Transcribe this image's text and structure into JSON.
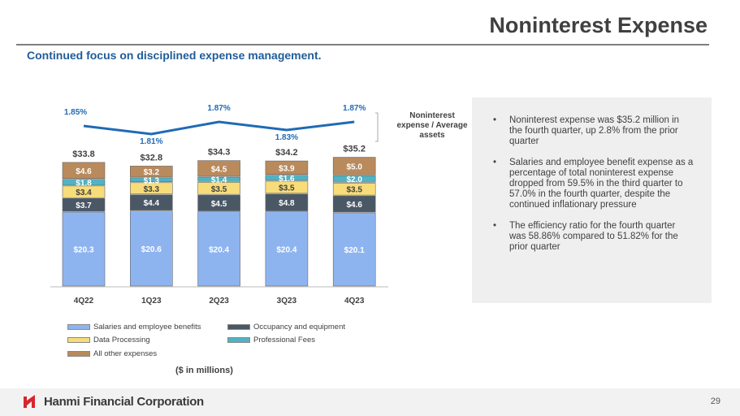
{
  "header": {
    "title": "Noninterest Expense",
    "subtitle": "Continued focus on disciplined expense management."
  },
  "chart_data": {
    "type": "bar",
    "stacked": true,
    "categories": [
      "4Q22",
      "1Q23",
      "2Q23",
      "3Q23",
      "4Q23"
    ],
    "series": [
      {
        "name": "Salaries and employee benefits",
        "values": [
          20.3,
          20.6,
          20.4,
          20.4,
          20.1
        ],
        "color": "#8eb4f0",
        "labels": [
          "$20.3",
          "$20.6",
          "$20.4",
          "$20.4",
          "$20.1"
        ]
      },
      {
        "name": "Occupancy and equipment",
        "values": [
          3.7,
          4.4,
          4.5,
          4.8,
          4.6
        ],
        "color": "#4a5866",
        "labels": [
          "$3.7",
          "$4.4",
          "$4.5",
          "$4.8",
          "$4.6"
        ]
      },
      {
        "name": "Data Processing",
        "values": [
          3.4,
          3.3,
          3.5,
          3.5,
          3.5
        ],
        "color": "#f7dc7a",
        "labels": [
          "$3.4",
          "$3.3",
          "$3.5",
          "$3.5",
          "$3.5"
        ]
      },
      {
        "name": "Professional Fees",
        "values": [
          1.8,
          1.3,
          1.4,
          1.6,
          2.0
        ],
        "color": "#4fb3c4",
        "labels": [
          "$1.8",
          "$1.3",
          "$1.4",
          "$1.6",
          "$2.0"
        ]
      },
      {
        "name": "All other expenses",
        "values": [
          4.6,
          3.2,
          4.5,
          3.9,
          5.0
        ],
        "color": "#b98a5c",
        "labels": [
          "$4.6",
          "$3.2",
          "$4.5",
          "$3.9",
          "$5.0"
        ]
      }
    ],
    "totals": [
      "$33.8",
      "$32.8",
      "$34.3",
      "$34.2",
      "$35.2"
    ],
    "line": {
      "name": "Noninterest expense / Average assets",
      "values": [
        1.85,
        1.81,
        1.87,
        1.83,
        1.87
      ],
      "labels": [
        "1.85%",
        "1.81%",
        "1.87%",
        "1.83%",
        "1.87%"
      ],
      "color": "#1f6bb5"
    },
    "unit_label": "($ in millions)"
  },
  "panel": {
    "bullets": [
      "Noninterest expense was $35.2 million in the fourth quarter, up 2.8% from the prior quarter",
      "Salaries and employee benefit expense as a percentage of total noninterest expense dropped from 59.5% in the third quarter to 57.0% in the fourth quarter, despite the continued inflationary pressure",
      "The efficiency ratio for the fourth quarter was 58.86% compared to 51.82% for the prior quarter"
    ]
  },
  "footer": {
    "logo_text": "Hanmi Financial Corporation",
    "page": "29"
  }
}
